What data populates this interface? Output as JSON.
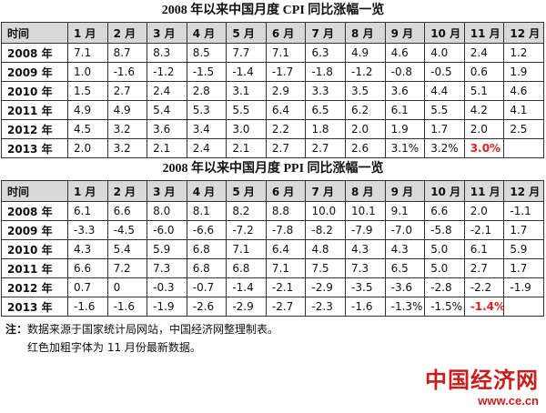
{
  "tables": [
    {
      "title": "2008 年以来中国月度 CPI 同比涨幅一览",
      "header": [
        "时间",
        "1 月",
        "2 月",
        "3 月",
        "4 月",
        "5 月",
        "6 月",
        "7 月",
        "8 月",
        "9 月",
        "10 月",
        "11 月",
        "12 月"
      ],
      "rows": [
        {
          "label": "2008 年",
          "values": [
            "7.1",
            "8.7",
            "8.3",
            "8.5",
            "7.7",
            "7.1",
            "6.3",
            "4.9",
            "4.6",
            "4.0",
            "2.4",
            "1.2"
          ]
        },
        {
          "label": "2009 年",
          "values": [
            "1.0",
            "-1.6",
            "-1.2",
            "-1.5",
            "-1.4",
            "-1.7",
            "-1.8",
            "-1.2",
            "-0.8",
            "-0.5",
            "0.6",
            "1.9"
          ]
        },
        {
          "label": "2010 年",
          "values": [
            "1.5",
            "2.7",
            "2.4",
            "2.8",
            "3.1",
            "2.9",
            "3.3",
            "3.5",
            "3.6",
            "4.4",
            "5.1",
            "4.6"
          ]
        },
        {
          "label": "2011 年",
          "values": [
            "4.9",
            "4.9",
            "5.4",
            "5.3",
            "5.5",
            "6.4",
            "6.5",
            "6.2",
            "6.1",
            "5.5",
            "4.2",
            "4.1"
          ]
        },
        {
          "label": "2012 年",
          "values": [
            "4.5",
            "3.2",
            "3.6",
            "3.4",
            "3.0",
            "2.2",
            "1.8",
            "2.0",
            "1.9",
            "1.7",
            "2.0",
            "2.5"
          ]
        },
        {
          "label": "2013 年",
          "values": [
            "2.0",
            "3.2",
            "2.1",
            "2.4",
            "2.1",
            "2.7",
            "2.7",
            "2.6",
            "3.1%",
            "3.2%",
            "3.0%"
          ]
        }
      ]
    },
    {
      "title": "2008 年以来中国月度 PPI 同比涨幅一览",
      "header": [
        "时间",
        "1 月",
        "2 月",
        "3 月",
        "4 月",
        "5 月",
        "6 月",
        "7 月",
        "8 月",
        "9 月",
        "10 月",
        "11 月",
        "12 月"
      ],
      "rows": [
        {
          "label": "2008 年",
          "values": [
            "6.1",
            "6.6",
            "8.0",
            "8.1",
            "8.2",
            "8.8",
            "10.0",
            "10.1",
            "9.1",
            "6.6",
            "2.0",
            "-1.1"
          ]
        },
        {
          "label": "2009 年",
          "values": [
            "-3.3",
            "-4.5",
            "-6.0",
            "-6.6",
            "-7.2",
            "-7.8",
            "-8.2",
            "-7.9",
            "-7.0",
            "-5.8",
            "-2.1",
            "1.7"
          ]
        },
        {
          "label": "2010 年",
          "values": [
            "4.3",
            "5.4",
            "5.9",
            "6.8",
            "7.1",
            "6.4",
            "4.8",
            "4.3",
            "4.3",
            "5.0",
            "6.1",
            "5.9"
          ]
        },
        {
          "label": "2011 年",
          "values": [
            "6.6",
            "7.2",
            "7.3",
            "6.8",
            "6.8",
            "7.1",
            "7.5",
            "7.3",
            "6.5",
            "5.0",
            "2.7",
            "1.7"
          ]
        },
        {
          "label": "2012 年",
          "values": [
            "0.7",
            "0",
            "-0.3",
            "-0.7",
            "-1.4",
            "-2.1",
            "-2.9",
            "-3.5",
            "-3.6",
            "-2.8",
            "-2.2",
            "-1.9"
          ]
        },
        {
          "label": "2013 年",
          "values": [
            "-1.6",
            "-1.6",
            "-1.9",
            "-2.6",
            "-2.9",
            "-2.7",
            "-2.3",
            "-1.6",
            "-1.3%",
            "-1.5%",
            "-1.4%"
          ]
        }
      ]
    }
  ],
  "notes": {
    "label": "注：",
    "lines": [
      "数据来源于国家统计局网站，中国经济网整理制表。",
      "红色加粗字体为 11 月份最新数据。"
    ]
  },
  "watermark": {
    "logo": "中国经济网",
    "url": "www.ce.cn"
  }
}
